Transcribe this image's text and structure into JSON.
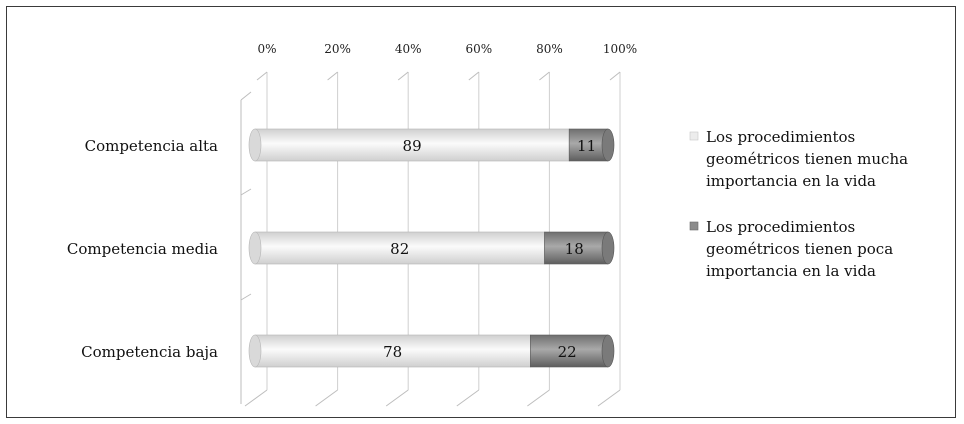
{
  "chart_data": {
    "type": "bar",
    "orientation": "horizontal",
    "stacked": true,
    "percent": true,
    "categories": [
      "Competencia alta",
      "Competencia media",
      "Competencia baja"
    ],
    "series": [
      {
        "name": "Los procedimientos geométricos tienen mucha importancia en la vida",
        "legend_lines": [
          "Los procedimientos",
          "geométricos tienen mucha",
          "importancia en la vida"
        ],
        "values": [
          89,
          82,
          78
        ],
        "color": "#ececec"
      },
      {
        "name": "Los procedimientos geométricos tienen poca importancia en la vida",
        "legend_lines": [
          "Los procedimientos",
          "geométricos tienen poca",
          "importancia en la vida"
        ],
        "values": [
          11,
          18,
          22
        ],
        "color": "#8c8c8c"
      }
    ],
    "xticks": [
      "0%",
      "20%",
      "40%",
      "60%",
      "80%",
      "100%"
    ],
    "xlim": [
      0,
      100
    ],
    "grid": true,
    "legend_position": "right"
  }
}
